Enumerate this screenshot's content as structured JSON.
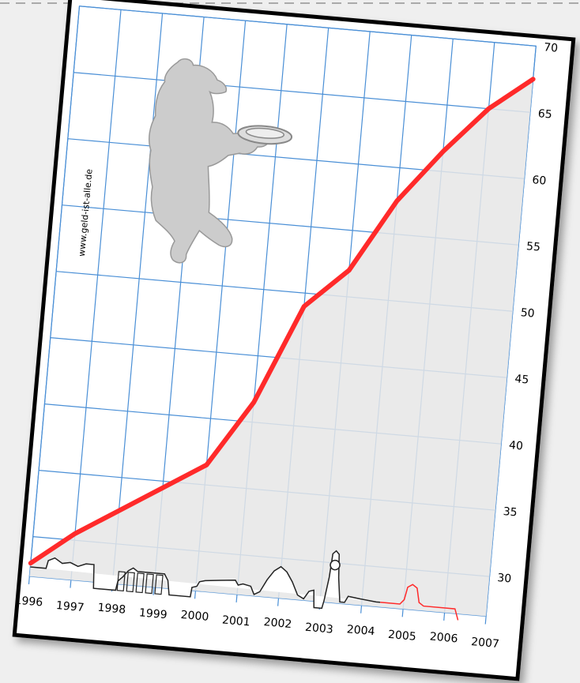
{
  "watermark": "www.geld-ist-alle.de",
  "colors": {
    "line": "#ff2a2a",
    "grid": "#4a8fd6",
    "area": "#e6e6e6",
    "bear": "#cccccc",
    "skyline": "#222222",
    "skyline_red": "#ff2a2a"
  },
  "icons": [
    "berlin-bear-icon",
    "berlin-skyline-icon"
  ],
  "chart_data": {
    "type": "line",
    "title": "",
    "xlabel": "",
    "ylabel": "",
    "categories": [
      "1996",
      "1997",
      "1998",
      "1999",
      "2000",
      "2001",
      "2002",
      "2003",
      "2004",
      "2005",
      "2006",
      "2007"
    ],
    "series": [
      {
        "values": [
          28.0,
          30.5,
          32.5,
          34.5,
          36.5,
          41.5,
          49.0,
          52.0,
          57.5,
          61.5,
          65.0,
          67.5
        ]
      }
    ],
    "ylim": [
      27,
      70
    ],
    "yticks": [
      "30",
      "35",
      "40",
      "45",
      "50",
      "55",
      "60",
      "65",
      "70"
    ],
    "xlim": [
      1996,
      2007
    ],
    "grid": true,
    "area_fill": true,
    "y_axis_side": "right",
    "legend": "none"
  }
}
